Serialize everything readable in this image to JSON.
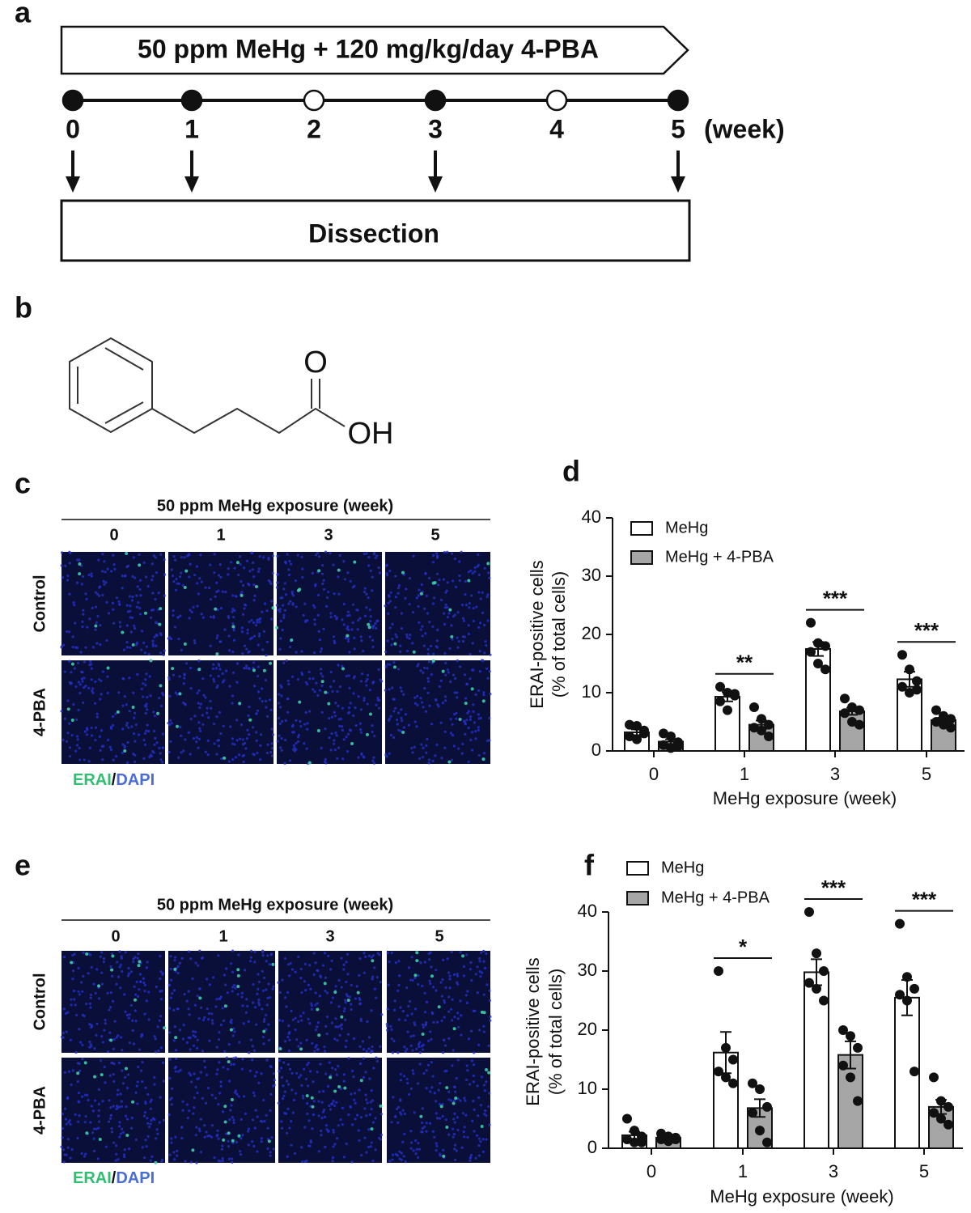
{
  "panel_labels": [
    "a",
    "b",
    "c",
    "d",
    "e",
    "f"
  ],
  "timeline": {
    "banner": "50  ppm MeHg + 120 mg/kg/day 4-PBA",
    "weeks": [
      "0",
      "1",
      "2",
      "3",
      "4",
      "5"
    ],
    "unit": "(week)",
    "filled": [
      true,
      true,
      false,
      true,
      false,
      true
    ],
    "box": "Dissection"
  },
  "structure": {
    "labels": [
      "O",
      "OH"
    ]
  },
  "micrographs": [
    {
      "header": "50 ppm MeHg exposure (week)",
      "columns": [
        "0",
        "1",
        "3",
        "5"
      ],
      "rows": [
        "Control",
        "4-PBA"
      ],
      "stain_green": "ERAI",
      "stain_sep": "/",
      "stain_blue": "DAPI"
    },
    {
      "header": "50 ppm MeHg exposure (week)",
      "columns": [
        "0",
        "1",
        "3",
        "5"
      ],
      "rows": [
        "Control",
        "4-PBA"
      ],
      "stain_green": "ERAI",
      "stain_sep": "/",
      "stain_blue": "DAPI"
    }
  ],
  "chart_data": [
    {
      "type": "bar",
      "categories": [
        "0",
        "1",
        "3",
        "5"
      ],
      "xlabel": "MeHg exposure (week)",
      "ylabel": [
        "ERAI-positive cells",
        "(% of total cells)"
      ],
      "ylim": [
        0,
        40
      ],
      "yticks": [
        0,
        10,
        20,
        30,
        40
      ],
      "legend": "upper left",
      "significance": [
        null,
        "**",
        "***",
        "***"
      ],
      "series": [
        {
          "name": "MeHg",
          "color": "#ffffff",
          "values": [
            3.2,
            9.3,
            17.5,
            12.3
          ],
          "errors": [
            0.5,
            0.8,
            1.2,
            1.3
          ],
          "points": [
            [
              4.5,
              4.3,
              3,
              2.5,
              2,
              3.5
            ],
            [
              11,
              10,
              9.5,
              8.5,
              7,
              9.8
            ],
            [
              22,
              18.5,
              18,
              17,
              15,
              14
            ],
            [
              16.5,
              14,
              12,
              11,
              10,
              10.5
            ]
          ]
        },
        {
          "name": "MeHg + 4-PBA",
          "color": "#a6a6a6",
          "values": [
            1.6,
            4.5,
            6.8,
            5.3
          ],
          "errors": [
            0.4,
            0.7,
            0.6,
            0.4
          ],
          "points": [
            [
              3,
              2.5,
              1.5,
              1,
              0.5,
              0.8
            ],
            [
              7.5,
              5.5,
              4.5,
              4,
              3.5,
              2.5
            ],
            [
              9,
              7.5,
              7,
              6.5,
              5,
              4.5
            ],
            [
              7,
              6,
              5.5,
              5,
              4.5,
              4
            ]
          ]
        }
      ]
    },
    {
      "type": "bar",
      "categories": [
        "0",
        "1",
        "3",
        "5"
      ],
      "xlabel": "MeHg exposure (week)",
      "ylabel": [
        "ERAI-positive cells",
        "(% of total cells)"
      ],
      "ylim": [
        0,
        40
      ],
      "yticks": [
        0,
        10,
        20,
        30,
        40
      ],
      "legend": "above",
      "significance": [
        null,
        "*",
        "***",
        "***"
      ],
      "series": [
        {
          "name": "MeHg",
          "color": "#ffffff",
          "values": [
            2.2,
            16.2,
            29.8,
            25.5
          ],
          "errors": [
            0.6,
            3.5,
            2.2,
            3
          ],
          "points": [
            [
              5,
              3,
              2,
              1.5,
              1,
              1
            ],
            [
              30,
              17,
              15,
              13,
              12,
              11
            ],
            [
              40,
              33,
              30,
              28,
              27,
              25
            ],
            [
              38,
              29,
              27,
              26,
              25,
              13
            ]
          ]
        },
        {
          "name": "MeHg + 4-PBA",
          "color": "#a6a6a6",
          "values": [
            1.8,
            6.8,
            15.8,
            7
          ],
          "errors": [
            0.4,
            1.5,
            2.3,
            1.2
          ],
          "points": [
            [
              2.5,
              2,
              1.8,
              1.5,
              1.2,
              1.5
            ],
            [
              11,
              10,
              7,
              6,
              3,
              1
            ],
            [
              20,
              19,
              17,
              14,
              12,
              8
            ],
            [
              12,
              8,
              7,
              6,
              5,
              4
            ]
          ]
        }
      ]
    }
  ]
}
